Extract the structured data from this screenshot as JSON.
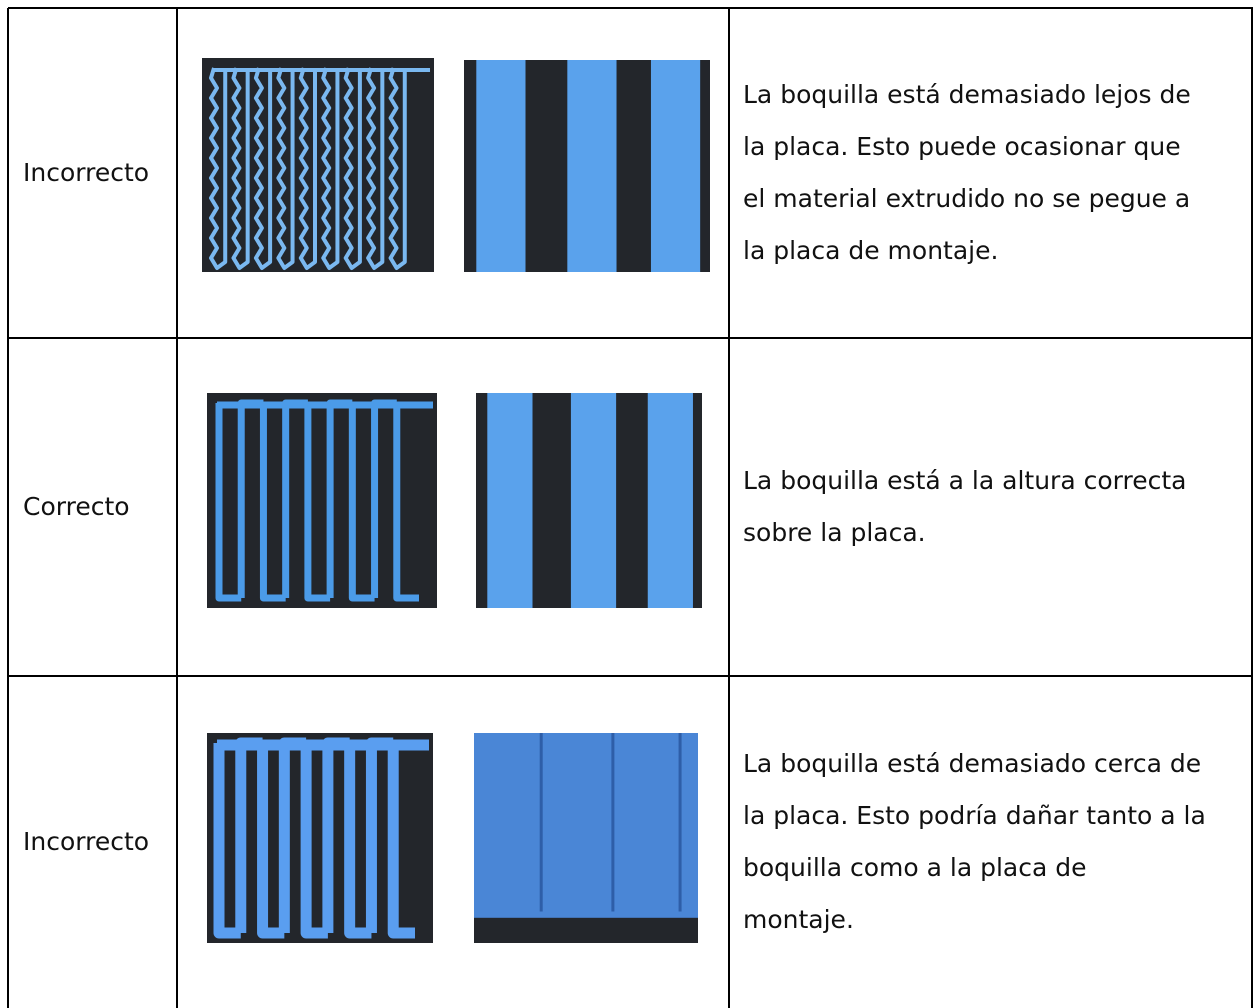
{
  "table": {
    "rows": [
      {
        "status": "Incorrecto",
        "description": [
          "La boquilla está demasiado lejos de",
          "la placa. Esto puede ocasionar que",
          "el material extrudido no se pegue a",
          "la placa de montaje."
        ]
      },
      {
        "status": "Correcto",
        "description": [
          "La boquilla está a la altura correcta",
          "sobre la placa."
        ]
      },
      {
        "status": "Incorrecto",
        "description": [
          "La boquilla está demasiado cerca de",
          "la placa. Esto podría dañar tanto a la",
          "boquilla como a la placa de",
          "montaje."
        ]
      }
    ]
  }
}
